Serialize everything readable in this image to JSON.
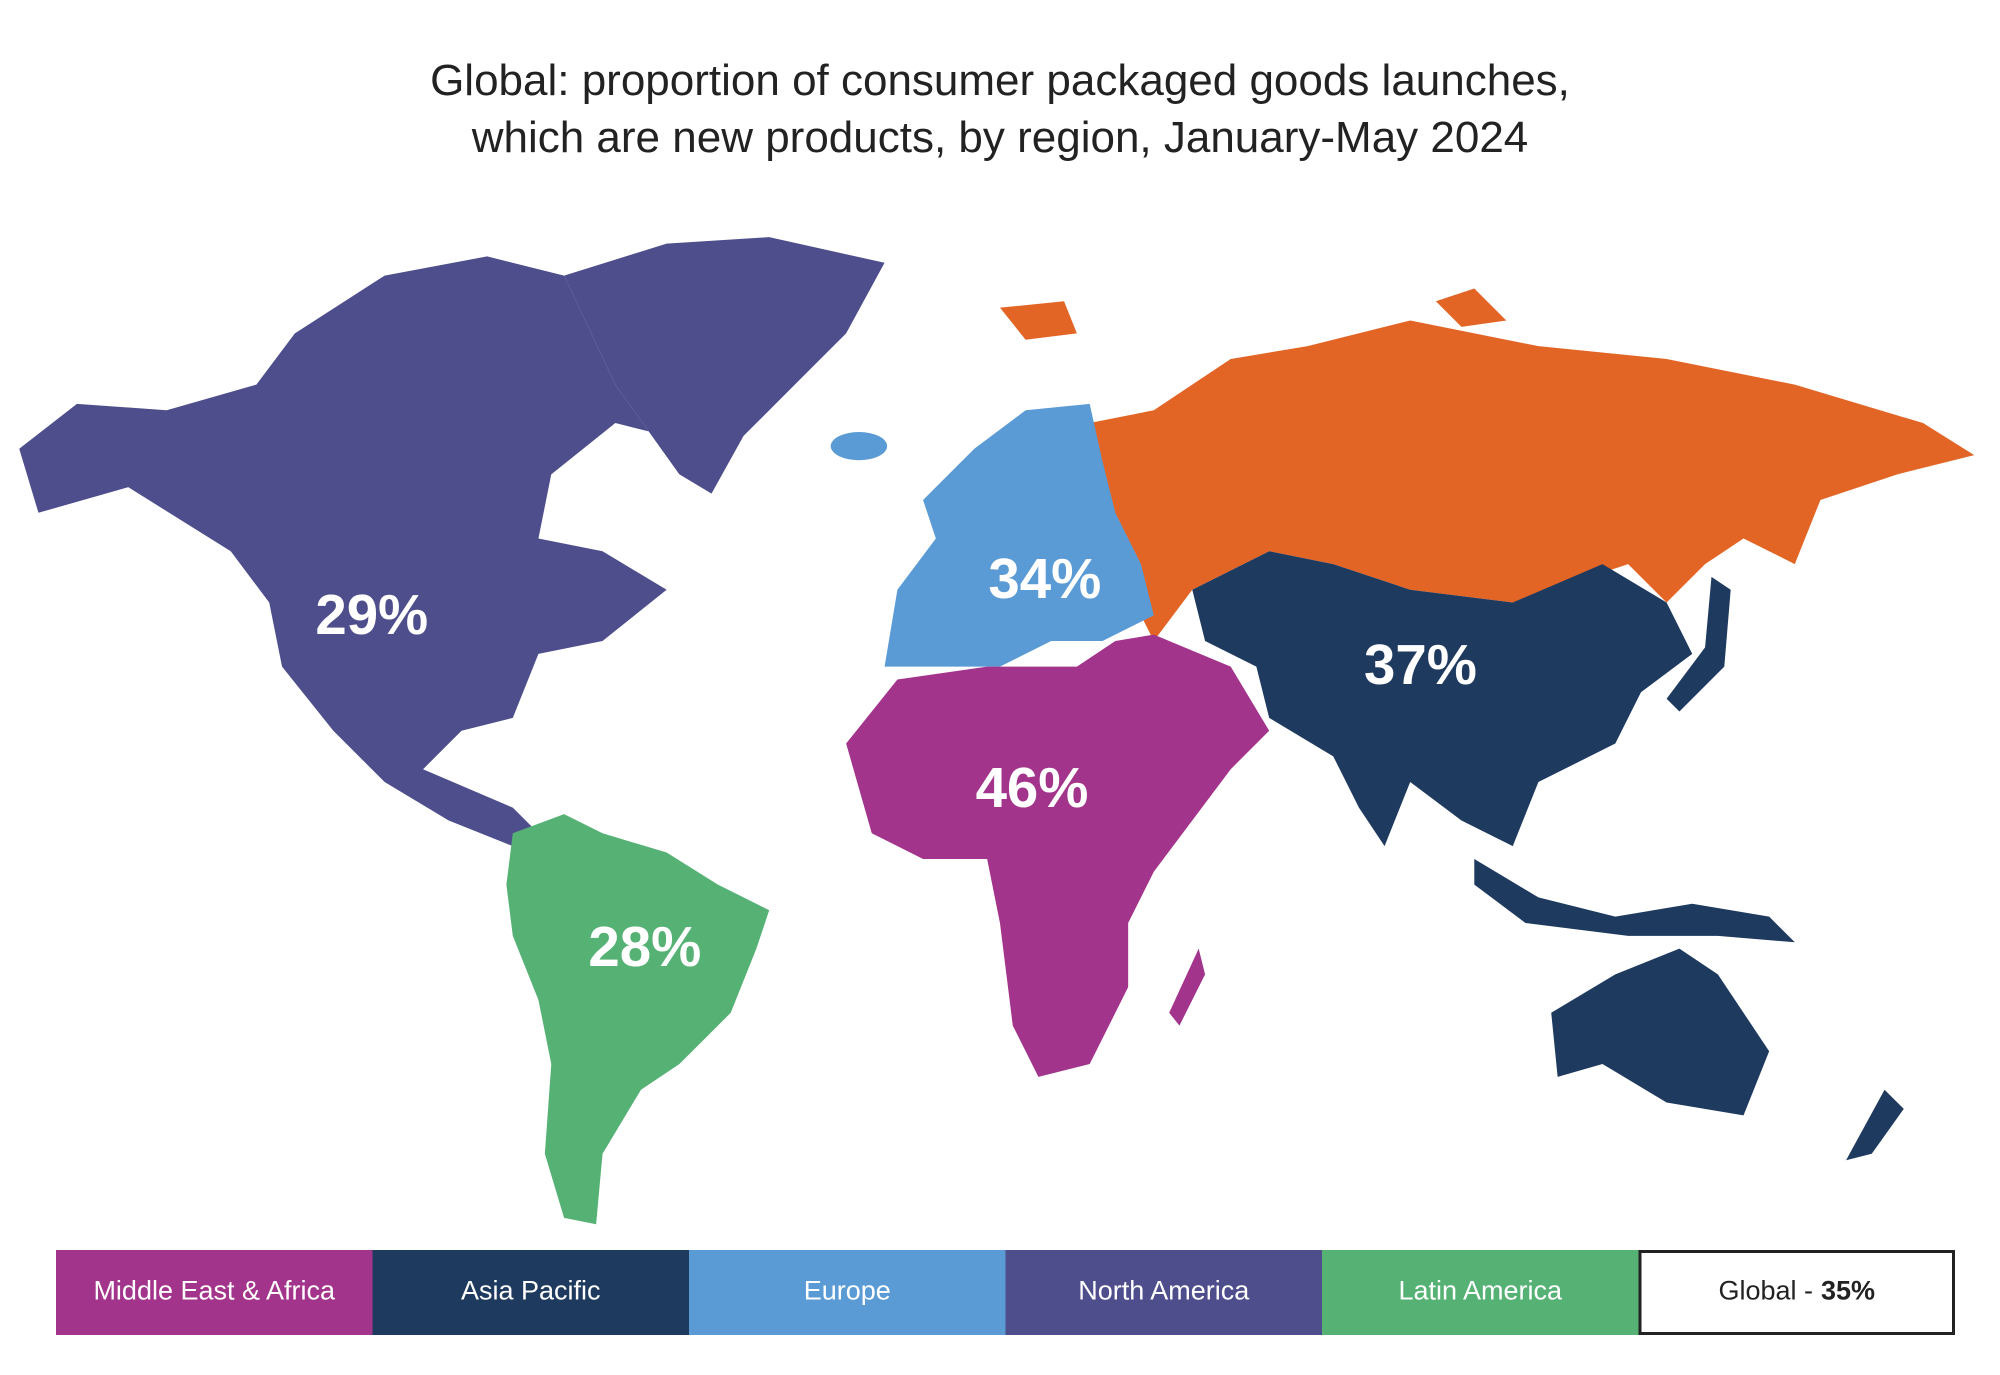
{
  "chart_data": {
    "type": "map",
    "title": [
      "Global: proportion of consumer packaged goods launches,",
      "which are new products, by region, January-May 2024"
    ],
    "regions": [
      {
        "name": "Middle East & Africa",
        "color": "#a3348b",
        "value": 46,
        "value_label": "46%"
      },
      {
        "name": "Asia Pacific",
        "color": "#1f3a5f",
        "value": 37,
        "value_label": "37%"
      },
      {
        "name": "Europe",
        "color": "#5b9bd5",
        "value": 34,
        "value_label": "34%"
      },
      {
        "name": "North America",
        "color": "#4e4e8c",
        "value": 29,
        "value_label": "29%"
      },
      {
        "name": "Latin America",
        "color": "#56b274",
        "value": 28,
        "value_label": "28%"
      }
    ],
    "global": {
      "label": "Global -",
      "value": 35,
      "value_label": "35%"
    }
  }
}
